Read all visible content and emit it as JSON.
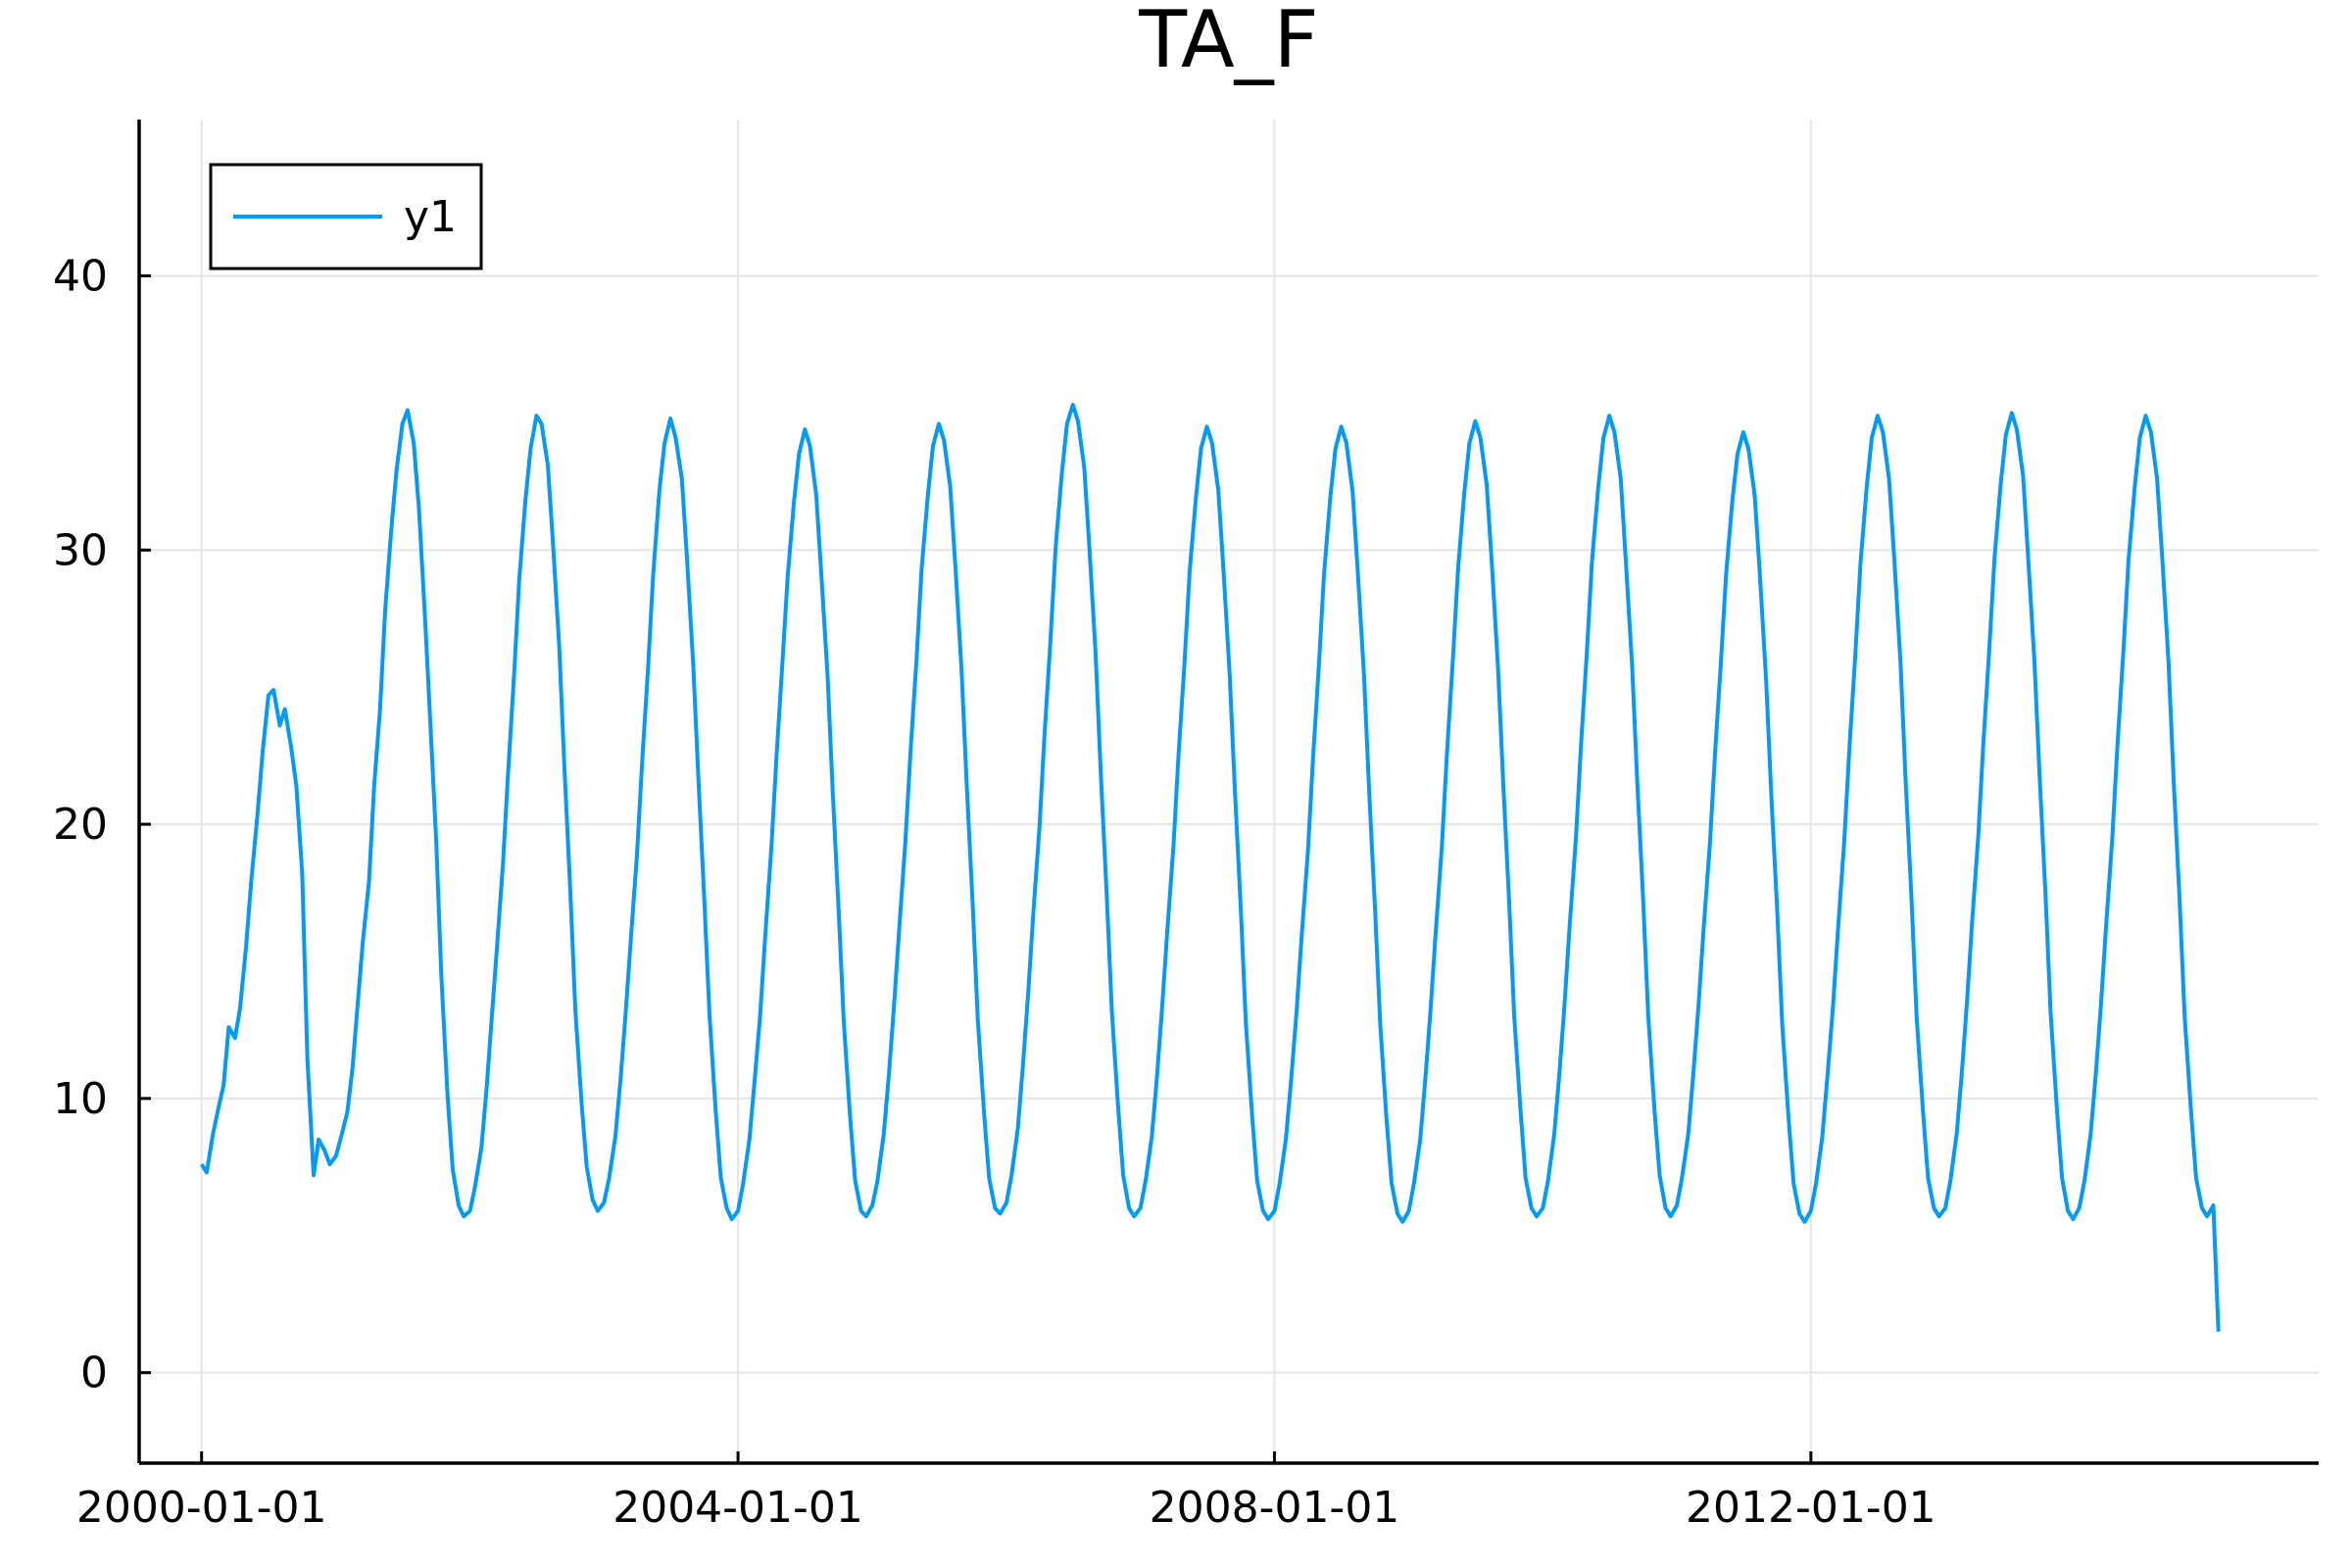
{
  "chart_data": {
    "type": "line",
    "title": "TA_F",
    "xlabel": "",
    "ylabel": "",
    "x_ticks": [
      "2000-01-01",
      "2004-01-01",
      "2008-01-01",
      "2012-01-01"
    ],
    "y_ticks": [
      "0",
      "10",
      "20",
      "30",
      "40"
    ],
    "xlim": [
      "1999-07-15",
      "2015-10-15"
    ],
    "ylim": [
      -3.3,
      45.7
    ],
    "grid": true,
    "legend": "top-left",
    "series": [
      {
        "name": "y1",
        "color": "#009af9",
        "x": [
          "2000-01-01",
          "2000-01-15",
          "2000-02-01",
          "2000-02-15",
          "2000-03-01",
          "2000-03-15",
          "2000-04-01",
          "2000-04-15",
          "2000-05-01",
          "2000-05-15",
          "2000-06-01",
          "2000-06-15",
          "2000-07-01",
          "2000-07-15",
          "2000-08-01",
          "2000-08-15",
          "2000-09-01",
          "2000-09-15",
          "2000-10-01",
          "2000-10-15",
          "2000-11-01",
          "2000-11-15",
          "2000-12-01",
          "2000-12-15",
          "2001-01-01",
          "2001-01-15",
          "2001-02-01",
          "2001-02-15",
          "2001-03-01",
          "2001-03-15",
          "2001-04-01",
          "2001-04-15",
          "2001-05-01",
          "2001-05-15",
          "2001-06-01",
          "2001-06-15",
          "2001-07-01",
          "2001-07-15",
          "2001-08-01",
          "2001-08-15",
          "2001-09-01",
          "2001-09-15",
          "2001-10-01",
          "2001-10-15",
          "2001-11-01",
          "2001-11-15",
          "2001-12-01",
          "2001-12-15",
          "2002-01-01",
          "2002-01-15",
          "2002-02-01",
          "2002-02-15",
          "2002-03-01",
          "2002-03-15",
          "2002-04-01",
          "2002-04-15",
          "2002-05-01",
          "2002-05-15",
          "2002-06-01",
          "2002-06-15",
          "2002-07-01",
          "2002-07-15",
          "2002-08-01",
          "2002-08-15",
          "2002-09-01",
          "2002-09-15",
          "2002-10-01",
          "2002-10-15",
          "2002-11-01",
          "2002-11-15",
          "2002-12-01",
          "2002-12-15",
          "2003-01-01",
          "2003-01-15",
          "2003-02-01",
          "2003-02-15",
          "2003-03-01",
          "2003-03-15",
          "2003-04-01",
          "2003-04-15",
          "2003-05-01",
          "2003-05-15",
          "2003-06-01",
          "2003-06-15",
          "2003-07-01",
          "2003-07-15",
          "2003-08-01",
          "2003-08-15",
          "2003-09-01",
          "2003-09-15",
          "2003-10-01",
          "2003-10-15",
          "2003-11-01",
          "2003-11-15",
          "2003-12-01",
          "2003-12-15",
          "2004-01-01",
          "2004-01-15",
          "2004-02-01",
          "2004-02-15",
          "2004-03-01",
          "2004-03-15",
          "2004-04-01",
          "2004-04-15",
          "2004-05-01",
          "2004-05-15",
          "2004-06-01",
          "2004-06-15",
          "2004-07-01",
          "2004-07-15",
          "2004-08-01",
          "2004-08-15",
          "2004-09-01",
          "2004-09-15",
          "2004-10-01",
          "2004-10-15",
          "2004-11-01",
          "2004-11-15",
          "2004-12-01",
          "2004-12-15",
          "2005-01-01",
          "2005-01-15",
          "2005-02-01",
          "2005-02-15",
          "2005-03-01",
          "2005-03-15",
          "2005-04-01",
          "2005-04-15",
          "2005-05-01",
          "2005-05-15",
          "2005-06-01",
          "2005-06-15",
          "2005-07-01",
          "2005-07-15",
          "2005-08-01",
          "2005-08-15",
          "2005-09-01",
          "2005-09-15",
          "2005-10-01",
          "2005-10-15",
          "2005-11-01",
          "2005-11-15",
          "2005-12-01",
          "2005-12-15",
          "2006-01-01",
          "2006-01-15",
          "2006-02-01",
          "2006-02-15",
          "2006-03-01",
          "2006-03-15",
          "2006-04-01",
          "2006-04-15",
          "2006-05-01",
          "2006-05-15",
          "2006-06-01",
          "2006-06-15",
          "2006-07-01",
          "2006-07-15",
          "2006-08-01",
          "2006-08-15",
          "2006-09-01",
          "2006-09-15",
          "2006-10-01",
          "2006-10-15",
          "2006-11-01",
          "2006-11-15",
          "2006-12-01",
          "2006-12-15",
          "2007-01-01",
          "2007-01-15",
          "2007-02-01",
          "2007-02-15",
          "2007-03-01",
          "2007-03-15",
          "2007-04-01",
          "2007-04-15",
          "2007-05-01",
          "2007-05-15",
          "2007-06-01",
          "2007-06-15",
          "2007-07-01",
          "2007-07-15",
          "2007-08-01",
          "2007-08-15",
          "2007-09-01",
          "2007-09-15",
          "2007-10-01",
          "2007-10-15",
          "2007-11-01",
          "2007-11-15",
          "2007-12-01",
          "2007-12-15",
          "2008-01-01",
          "2008-01-15",
          "2008-02-01",
          "2008-02-15",
          "2008-03-01",
          "2008-03-15",
          "2008-04-01",
          "2008-04-15",
          "2008-05-01",
          "2008-05-15",
          "2008-06-01",
          "2008-06-15",
          "2008-07-01",
          "2008-07-15",
          "2008-08-01",
          "2008-08-15",
          "2008-09-01",
          "2008-09-15",
          "2008-10-01",
          "2008-10-15",
          "2008-11-01",
          "2008-11-15",
          "2008-12-01",
          "2008-12-15",
          "2009-01-01",
          "2009-01-15",
          "2009-02-01",
          "2009-02-15",
          "2009-03-01",
          "2009-03-15",
          "2009-04-01",
          "2009-04-15",
          "2009-05-01",
          "2009-05-15",
          "2009-06-01",
          "2009-06-15",
          "2009-07-01",
          "2009-07-15",
          "2009-08-01",
          "2009-08-15",
          "2009-09-01",
          "2009-09-15",
          "2009-10-01",
          "2009-10-15",
          "2009-11-01",
          "2009-11-15",
          "2009-12-01",
          "2009-12-15",
          "2010-01-01",
          "2010-01-15",
          "2010-02-01",
          "2010-02-15",
          "2010-03-01",
          "2010-03-15",
          "2010-04-01",
          "2010-04-15",
          "2010-05-01",
          "2010-05-15",
          "2010-06-01",
          "2010-06-15",
          "2010-07-01",
          "2010-07-15",
          "2010-08-01",
          "2010-08-15",
          "2010-09-01",
          "2010-09-15",
          "2010-10-01",
          "2010-10-15",
          "2010-11-01",
          "2010-11-15",
          "2010-12-01",
          "2010-12-15",
          "2011-01-01",
          "2011-01-15",
          "2011-02-01",
          "2011-02-15",
          "2011-03-01",
          "2011-03-15",
          "2011-04-01",
          "2011-04-15",
          "2011-05-01",
          "2011-05-15",
          "2011-06-01",
          "2011-06-15",
          "2011-07-01",
          "2011-07-15",
          "2011-08-01",
          "2011-08-15",
          "2011-09-01",
          "2011-09-15",
          "2011-10-01",
          "2011-10-15",
          "2011-11-01",
          "2011-11-15",
          "2011-12-01",
          "2011-12-15",
          "2012-01-01",
          "2012-01-15",
          "2012-02-01",
          "2012-02-15",
          "2012-03-01",
          "2012-03-15",
          "2012-04-01",
          "2012-04-15",
          "2012-05-01",
          "2012-05-15",
          "2012-06-01",
          "2012-06-15",
          "2012-07-01",
          "2012-07-15",
          "2012-08-01",
          "2012-08-15",
          "2012-09-01",
          "2012-09-15",
          "2012-10-01",
          "2012-10-15",
          "2012-11-01",
          "2012-11-15",
          "2012-12-01",
          "2012-12-15",
          "2013-01-01",
          "2013-01-15",
          "2013-02-01",
          "2013-02-15",
          "2013-03-01",
          "2013-03-15",
          "2013-04-01",
          "2013-04-15",
          "2013-05-01",
          "2013-05-15",
          "2013-06-01",
          "2013-06-15",
          "2013-07-01",
          "2013-07-15",
          "2013-08-01",
          "2013-08-15",
          "2013-09-01",
          "2013-09-15",
          "2013-10-01",
          "2013-10-15",
          "2013-11-01",
          "2013-11-15",
          "2013-12-01",
          "2013-12-15",
          "2014-01-01",
          "2014-01-15",
          "2014-02-01",
          "2014-02-15",
          "2014-03-01",
          "2014-03-15",
          "2014-04-01",
          "2014-04-15",
          "2014-05-01",
          "2014-05-15",
          "2014-06-01",
          "2014-06-15",
          "2014-07-01",
          "2014-07-15",
          "2014-08-01",
          "2014-08-15",
          "2014-09-01",
          "2014-09-15",
          "2014-10-01",
          "2014-10-15",
          "2014-11-01",
          "2014-11-15",
          "2014-12-01",
          "2014-12-15",
          "2015-01-01",
          "2015-01-15"
        ],
        "y": [
          7.6,
          7.3,
          8.7,
          9.6,
          10.5,
          12.6,
          12.2,
          13.3,
          15.5,
          17.9,
          20.3,
          22.6,
          24.7,
          24.9,
          23.6,
          24.2,
          22.8,
          21.4,
          18.2,
          11.5,
          7.2,
          8.5,
          8.1,
          7.6,
          7.9,
          8.6,
          9.5,
          11.1,
          13.4,
          15.7,
          17.9,
          21.4,
          24.2,
          27.8,
          30.8,
          32.9,
          34.6,
          35.1,
          33.9,
          31.5,
          27.4,
          23.7,
          19.4,
          14.5,
          10.1,
          7.4,
          6.1,
          5.7,
          5.9,
          6.8,
          8.2,
          10.3,
          12.9,
          15.4,
          18.6,
          21.9,
          25.4,
          28.9,
          31.8,
          33.7,
          34.9,
          34.6,
          33.1,
          30.3,
          26.5,
          22.1,
          17.6,
          13.2,
          9.8,
          7.5,
          6.3,
          5.9,
          6.2,
          7.1,
          8.6,
          10.7,
          13.1,
          15.8,
          18.9,
          22.3,
          25.7,
          29.1,
          32.2,
          33.9,
          34.8,
          34.1,
          32.6,
          29.7,
          25.8,
          21.7,
          17.3,
          13.1,
          9.6,
          7.1,
          6.0,
          5.6,
          5.9,
          6.9,
          8.5,
          10.6,
          13.0,
          15.9,
          19.2,
          22.5,
          25.9,
          29.0,
          31.7,
          33.5,
          34.4,
          33.8,
          32.0,
          29.1,
          25.4,
          21.2,
          16.9,
          12.8,
          9.4,
          7.0,
          5.9,
          5.7,
          6.1,
          7.0,
          8.7,
          10.9,
          13.4,
          16.2,
          19.4,
          22.7,
          26.0,
          29.3,
          32.0,
          33.8,
          34.6,
          34.0,
          32.3,
          29.4,
          25.6,
          21.4,
          17.1,
          12.9,
          9.5,
          7.1,
          6.0,
          5.8,
          6.2,
          7.2,
          8.9,
          11.2,
          13.8,
          16.7,
          19.9,
          23.3,
          26.7,
          30.1,
          32.8,
          34.6,
          35.3,
          34.7,
          33.0,
          30.1,
          26.2,
          21.9,
          17.5,
          13.2,
          9.7,
          7.2,
          6.0,
          5.7,
          6.0,
          7.0,
          8.6,
          10.8,
          13.3,
          16.1,
          19.2,
          22.6,
          25.9,
          29.2,
          31.9,
          33.7,
          34.5,
          33.9,
          32.2,
          29.3,
          25.5,
          21.3,
          17.0,
          12.8,
          9.4,
          7.0,
          5.9,
          5.6,
          5.9,
          6.9,
          8.5,
          10.6,
          13.1,
          15.9,
          19.0,
          22.4,
          25.8,
          29.1,
          31.9,
          33.7,
          34.5,
          33.9,
          32.1,
          29.2,
          25.4,
          21.2,
          16.9,
          12.7,
          9.3,
          6.9,
          5.8,
          5.5,
          5.9,
          6.9,
          8.5,
          10.7,
          13.2,
          16.0,
          19.2,
          22.6,
          26.0,
          29.3,
          32.1,
          33.9,
          34.7,
          34.1,
          32.4,
          29.5,
          25.7,
          21.5,
          17.2,
          13.0,
          9.6,
          7.1,
          6.0,
          5.7,
          6.0,
          7.0,
          8.7,
          10.9,
          13.4,
          16.3,
          19.5,
          22.9,
          26.3,
          29.6,
          32.3,
          34.1,
          34.9,
          34.3,
          32.6,
          29.6,
          25.8,
          21.6,
          17.3,
          13.0,
          9.6,
          7.2,
          6.0,
          5.7,
          6.1,
          7.1,
          8.7,
          10.9,
          13.4,
          16.2,
          19.3,
          22.6,
          25.9,
          29.1,
          31.8,
          33.5,
          34.3,
          33.7,
          32.0,
          29.1,
          25.3,
          21.1,
          16.9,
          12.7,
          9.3,
          6.9,
          5.8,
          5.5,
          5.9,
          6.9,
          8.6,
          10.8,
          13.3,
          16.2,
          19.4,
          22.8,
          26.2,
          29.5,
          32.3,
          34.1,
          34.9,
          34.3,
          32.6,
          29.7,
          25.9,
          21.6,
          17.3,
          13.0,
          9.6,
          7.1,
          6.0,
          5.7,
          6.0,
          7.0,
          8.7,
          10.9,
          13.5,
          16.4,
          19.6,
          23.0,
          26.4,
          29.7,
          32.4,
          34.2,
          35.0,
          34.4,
          32.7,
          29.7,
          25.9,
          21.7,
          17.4,
          13.1,
          9.6,
          7.1,
          5.9,
          5.6,
          6.0,
          7.0,
          8.7,
          10.9,
          13.4,
          16.3,
          19.5,
          22.9,
          26.3,
          29.6,
          32.3,
          34.1,
          34.9,
          34.3,
          32.6,
          29.7,
          25.9,
          21.6,
          17.3,
          13.0,
          9.6,
          7.1,
          6.0,
          5.7,
          6.1,
          1.5
        ]
      }
    ]
  }
}
